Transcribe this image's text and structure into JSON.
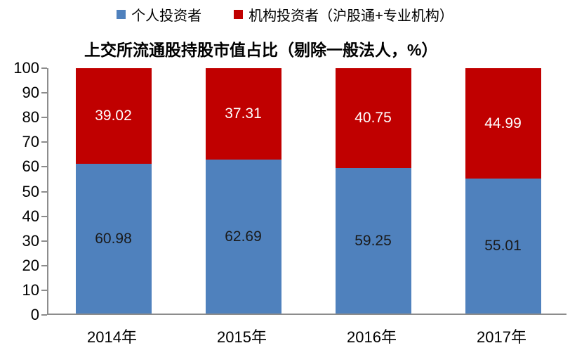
{
  "chart_data": {
    "type": "bar",
    "stacked": true,
    "title": "上交所流通股持股市值占比（剔除一般法人，%）",
    "categories": [
      "2014年",
      "2015年",
      "2016年",
      "2017年"
    ],
    "series": [
      {
        "name": "个人投资者",
        "color": "#4f81bd",
        "label_color": "#1a1a1a",
        "values": [
          60.98,
          62.69,
          59.25,
          55.01
        ]
      },
      {
        "name": "机构投资者（沪股通+专业机构）",
        "color": "#c00000",
        "label_color": "#ffffff",
        "values": [
          39.02,
          37.31,
          40.75,
          44.99
        ]
      }
    ],
    "ylim": [
      0,
      100
    ],
    "yticks": [
      0,
      10,
      20,
      30,
      40,
      50,
      60,
      70,
      80,
      90,
      100
    ],
    "grid": false,
    "legend_position": "top",
    "axis_color": "#8c8c8c"
  }
}
